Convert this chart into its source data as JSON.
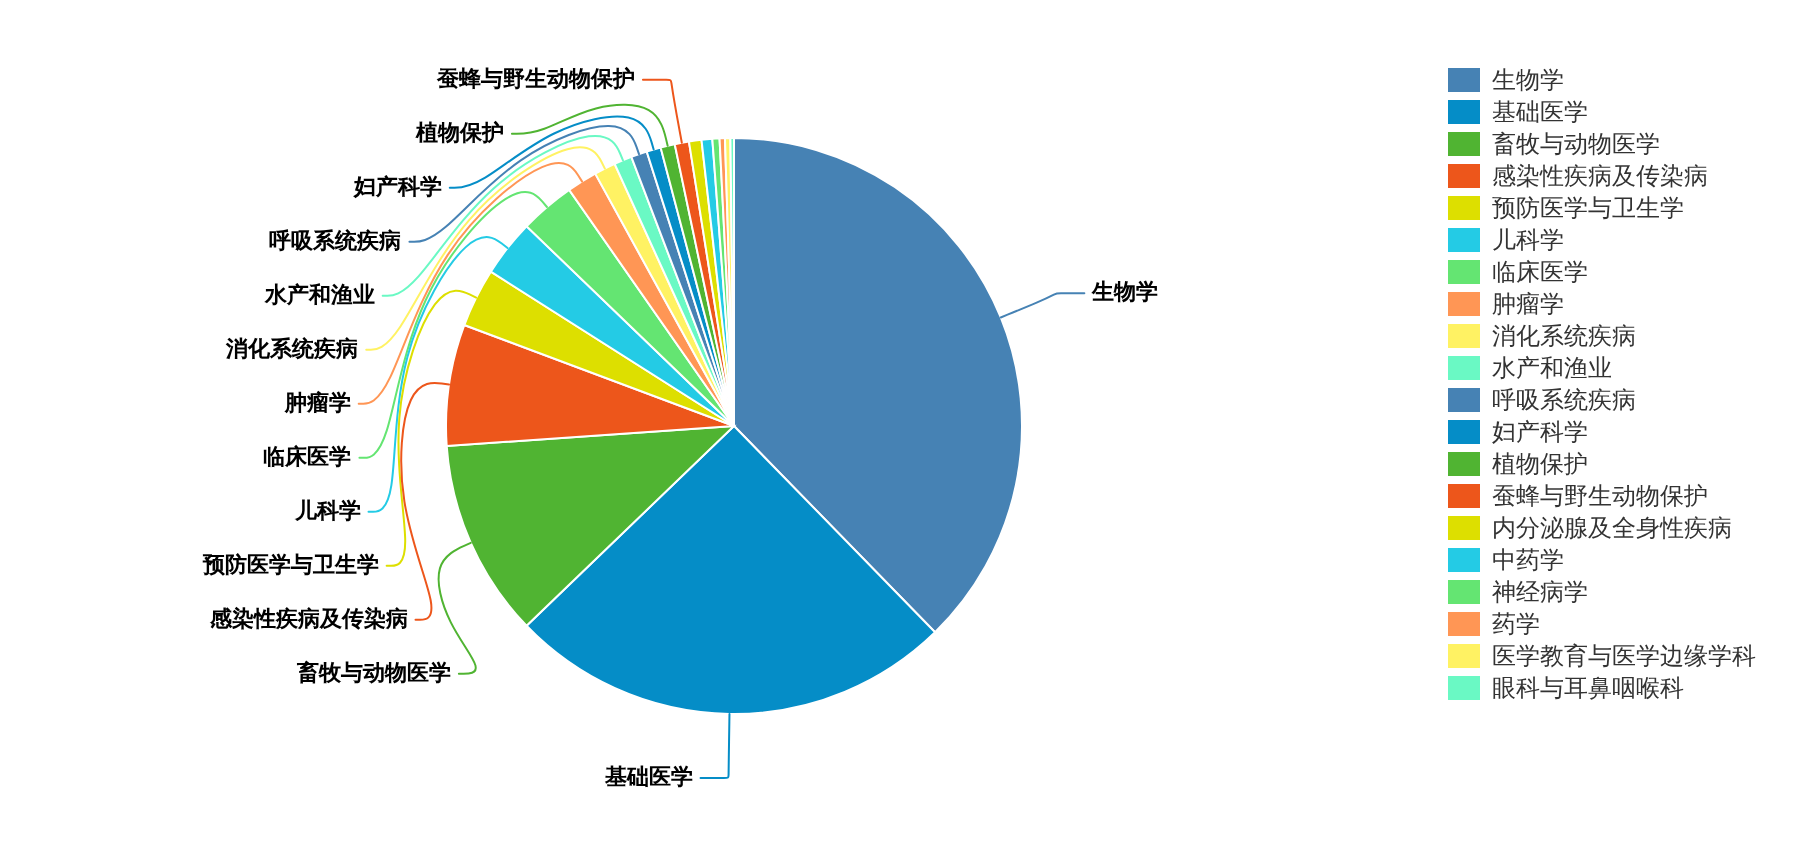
{
  "chart_data": {
    "type": "pie",
    "categories": [
      "生物学",
      "基础医学",
      "畜牧与动物医学",
      "感染性疾病及传染病",
      "预防医学与卫生学",
      "儿科学",
      "临床医学",
      "肿瘤学",
      "消化系统疾病",
      "水产和渔业",
      "呼吸系统疾病",
      "妇产科学",
      "植物保护",
      "蚕蜂与野生动物保护",
      "内分泌腺及全身性疾病",
      "中药学",
      "神经病学",
      "药学",
      "医学教育与医学边缘学科",
      "眼科与耳鼻咽喉科"
    ],
    "values": [
      37.7,
      25.1,
      11.1,
      6.8,
      3.3,
      3.2,
      3.1,
      1.7,
      1.2,
      1.0,
      0.9,
      0.8,
      0.8,
      0.8,
      0.7,
      0.6,
      0.4,
      0.3,
      0.3,
      0.2
    ],
    "colors": [
      "#4682b4",
      "#058dc7",
      "#50b432",
      "#ed561b",
      "#dddf00",
      "#24cbe5",
      "#64e572",
      "#ff9655",
      "#fff263",
      "#6af9c4",
      "#4682b4",
      "#058dc7",
      "#50b432",
      "#ed561b",
      "#dddf00",
      "#24cbe5",
      "#64e572",
      "#ff9655",
      "#fff263",
      "#6af9c4"
    ],
    "legend": "right"
  }
}
